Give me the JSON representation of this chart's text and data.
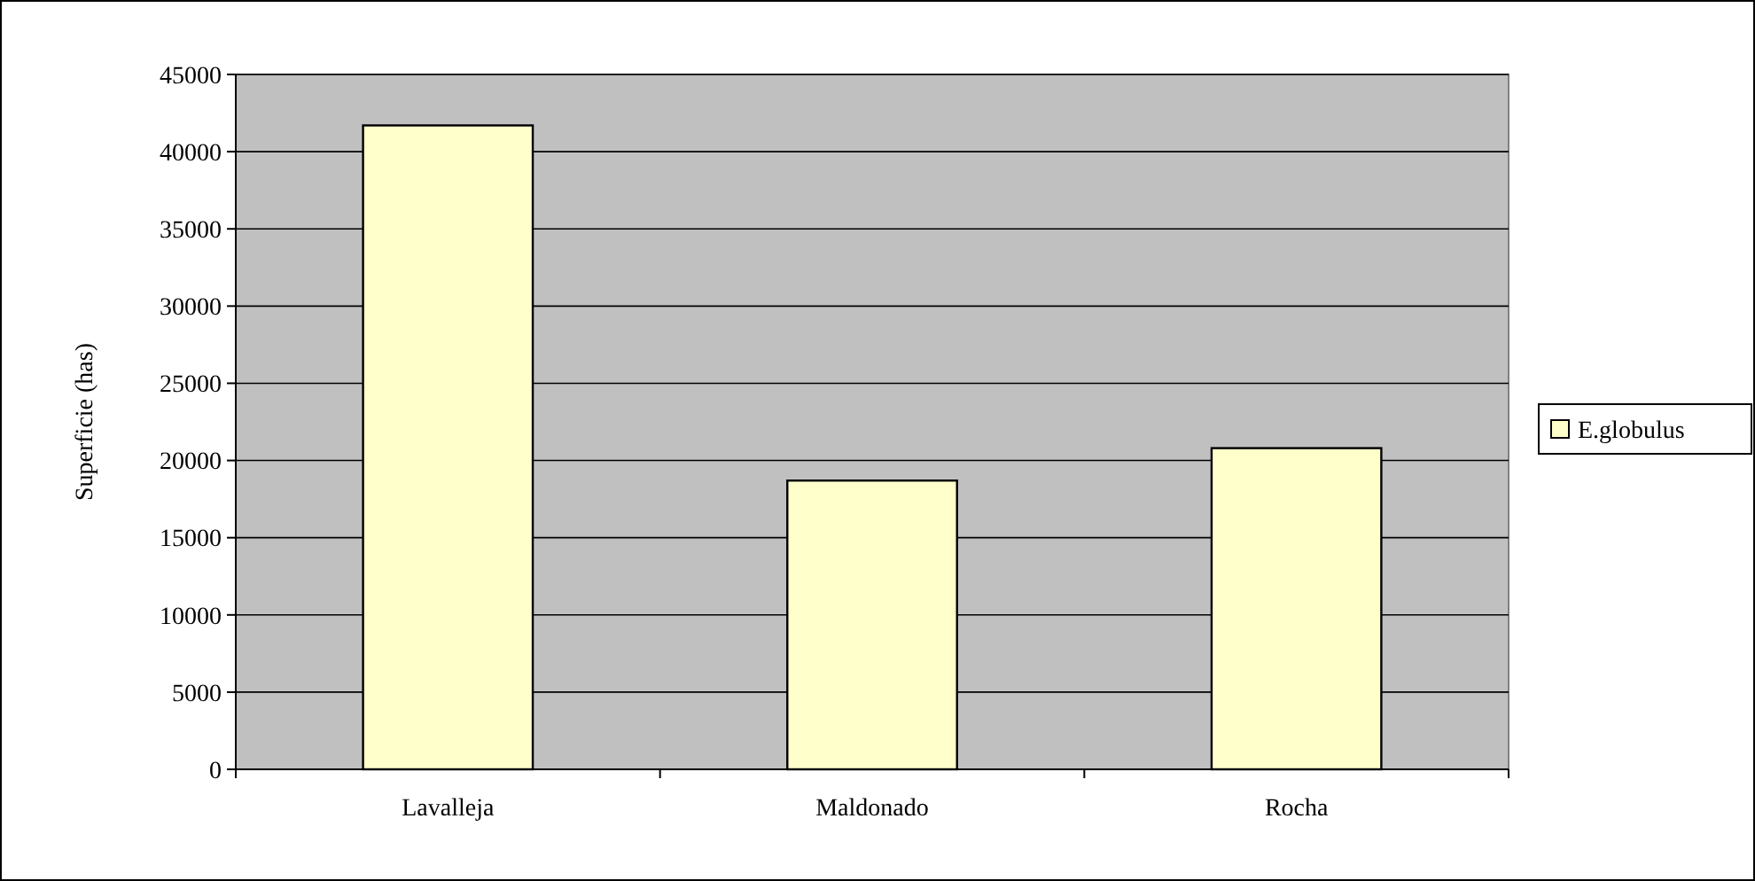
{
  "chart_data": {
    "type": "bar",
    "ylabel": "Superficie (has)",
    "categories": [
      "Lavalleja",
      "Maldonado",
      "Rocha"
    ],
    "series": [
      {
        "name": "E.globulus",
        "color": "#ffffcc",
        "values": [
          41700,
          18700,
          20800
        ]
      }
    ],
    "ylim": [
      0,
      45000
    ],
    "yticks": [
      0,
      5000,
      10000,
      15000,
      20000,
      25000,
      30000,
      35000,
      40000,
      45000
    ],
    "grid": "y",
    "legend": "right"
  }
}
